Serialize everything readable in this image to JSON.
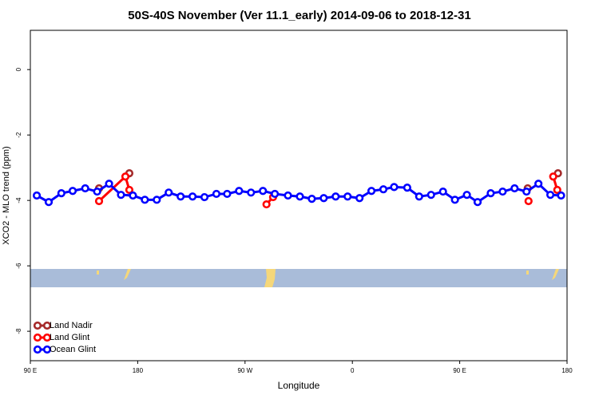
{
  "chart_data": {
    "type": "line",
    "title": "50S-40S November (Ver 11.1_early)   2014-09-06 to 2018-12-31",
    "x_label": "Longitude",
    "y_label": "XCO2 - MLO trend (ppm)",
    "xlim": [
      90,
      540
    ],
    "ylim": [
      -8.9,
      1.2
    ],
    "xticks": [
      {
        "value": 90,
        "label": "90 E"
      },
      {
        "value": 180,
        "label": "180"
      },
      {
        "value": 270,
        "label": "90 W"
      },
      {
        "value": 360,
        "label": "0"
      },
      {
        "value": 450,
        "label": "90 E"
      },
      {
        "value": 540,
        "label": "180"
      }
    ],
    "yticks": [
      -8,
      -6,
      -4,
      -2,
      0
    ],
    "legend_position": "lower left",
    "series": [
      {
        "name": "Land Nadir",
        "color": "#a52a2a",
        "x": [
          147.6,
          null,
          173,
          null,
          507,
          null,
          532.4
        ],
        "values": [
          -3.63,
          null,
          -3.17,
          null,
          -3.63,
          null,
          -3.17
        ]
      },
      {
        "name": "Land Glint",
        "color": "#ff0000",
        "x": [
          147.6,
          169.7,
          173,
          null,
          288,
          293.5,
          null,
          507.7,
          null,
          528.4,
          531.8
        ],
        "values": [
          -4.02,
          -3.27,
          -3.68,
          null,
          -4.12,
          -3.9,
          null,
          -4.02,
          null,
          -3.27,
          -3.68
        ]
      },
      {
        "name": "Ocean Glint",
        "color": "#0000ff",
        "x": [
          95.4,
          105.4,
          116,
          125.5,
          136,
          146,
          156,
          166,
          176,
          186,
          196,
          206,
          216,
          226,
          236,
          246,
          255,
          265,
          275,
          285,
          295,
          306,
          316,
          326,
          336,
          346,
          356,
          366,
          376,
          386,
          395,
          406,
          416,
          426,
          436,
          446,
          456,
          465,
          476,
          486,
          496,
          506,
          516,
          526,
          535
        ],
        "values": [
          -3.85,
          -4.05,
          -3.78,
          -3.71,
          -3.63,
          -3.73,
          -3.49,
          -3.83,
          -3.85,
          -3.98,
          -3.98,
          -3.76,
          -3.88,
          -3.88,
          -3.9,
          -3.8,
          -3.8,
          -3.71,
          -3.76,
          -3.71,
          -3.8,
          -3.85,
          -3.88,
          -3.95,
          -3.93,
          -3.88,
          -3.88,
          -3.93,
          -3.71,
          -3.66,
          -3.59,
          -3.61,
          -3.88,
          -3.83,
          -3.73,
          -3.98,
          -3.83,
          -4.05,
          -3.78,
          -3.73,
          -3.63,
          -3.73,
          -3.49,
          -3.83,
          -3.85
        ]
      }
    ]
  }
}
